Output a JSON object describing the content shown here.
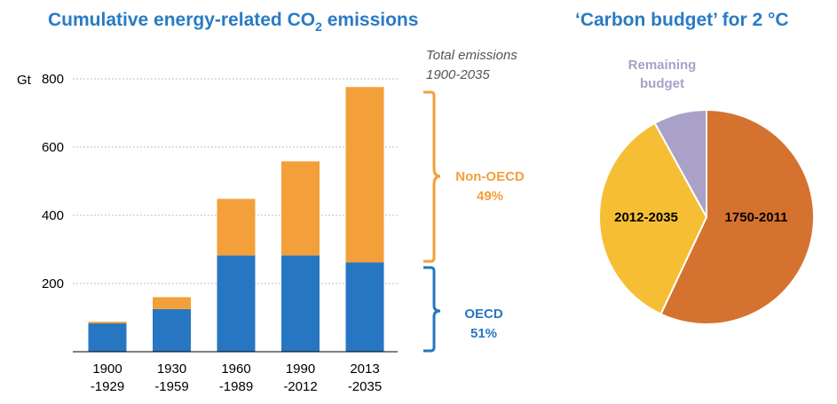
{
  "chart_data": [
    {
      "type": "bar",
      "stacked": true,
      "title_main": "Cumulative energy-related CO",
      "title_sub": "2",
      "title_end": " emissions",
      "ylabel": "Gt",
      "ylim": [
        0,
        800
      ],
      "yticks": [
        200,
        400,
        600,
        800
      ],
      "grid": true,
      "categories": [
        [
          "1900",
          "-1929"
        ],
        [
          "1930",
          "-1959"
        ],
        [
          "1960",
          "-1989"
        ],
        [
          "1990",
          "-2012"
        ],
        [
          "2013",
          "-2035"
        ]
      ],
      "series": [
        {
          "name": "OECD",
          "values": [
            83,
            125,
            282,
            282,
            262
          ],
          "color": "#2776c2"
        },
        {
          "name": "Non-OECD",
          "values": [
            5,
            35,
            166,
            276,
            514
          ],
          "color": "#f3a03a"
        }
      ],
      "annotation": {
        "note": [
          "Total emissions",
          "1900-2035"
        ],
        "nonoecd": {
          "label": "Non-OECD",
          "pct": "49%",
          "color": "#f3a03a"
        },
        "oecd": {
          "label": "OECD",
          "pct": "51%",
          "color": "#2776c2"
        }
      }
    },
    {
      "type": "pie",
      "title": "‘Carbon budget’ for 2 °C",
      "slices": [
        {
          "name": "1750-2011",
          "value": 57,
          "color": "#d57230"
        },
        {
          "name": "2012-2035",
          "value": 35,
          "color": "#f5be35"
        },
        {
          "name": "Remaining budget",
          "value": 8,
          "color": "#a9a1c8",
          "label_lines": [
            "Remaining",
            "budget"
          ],
          "label_color": "#a9a1c8"
        }
      ]
    }
  ]
}
